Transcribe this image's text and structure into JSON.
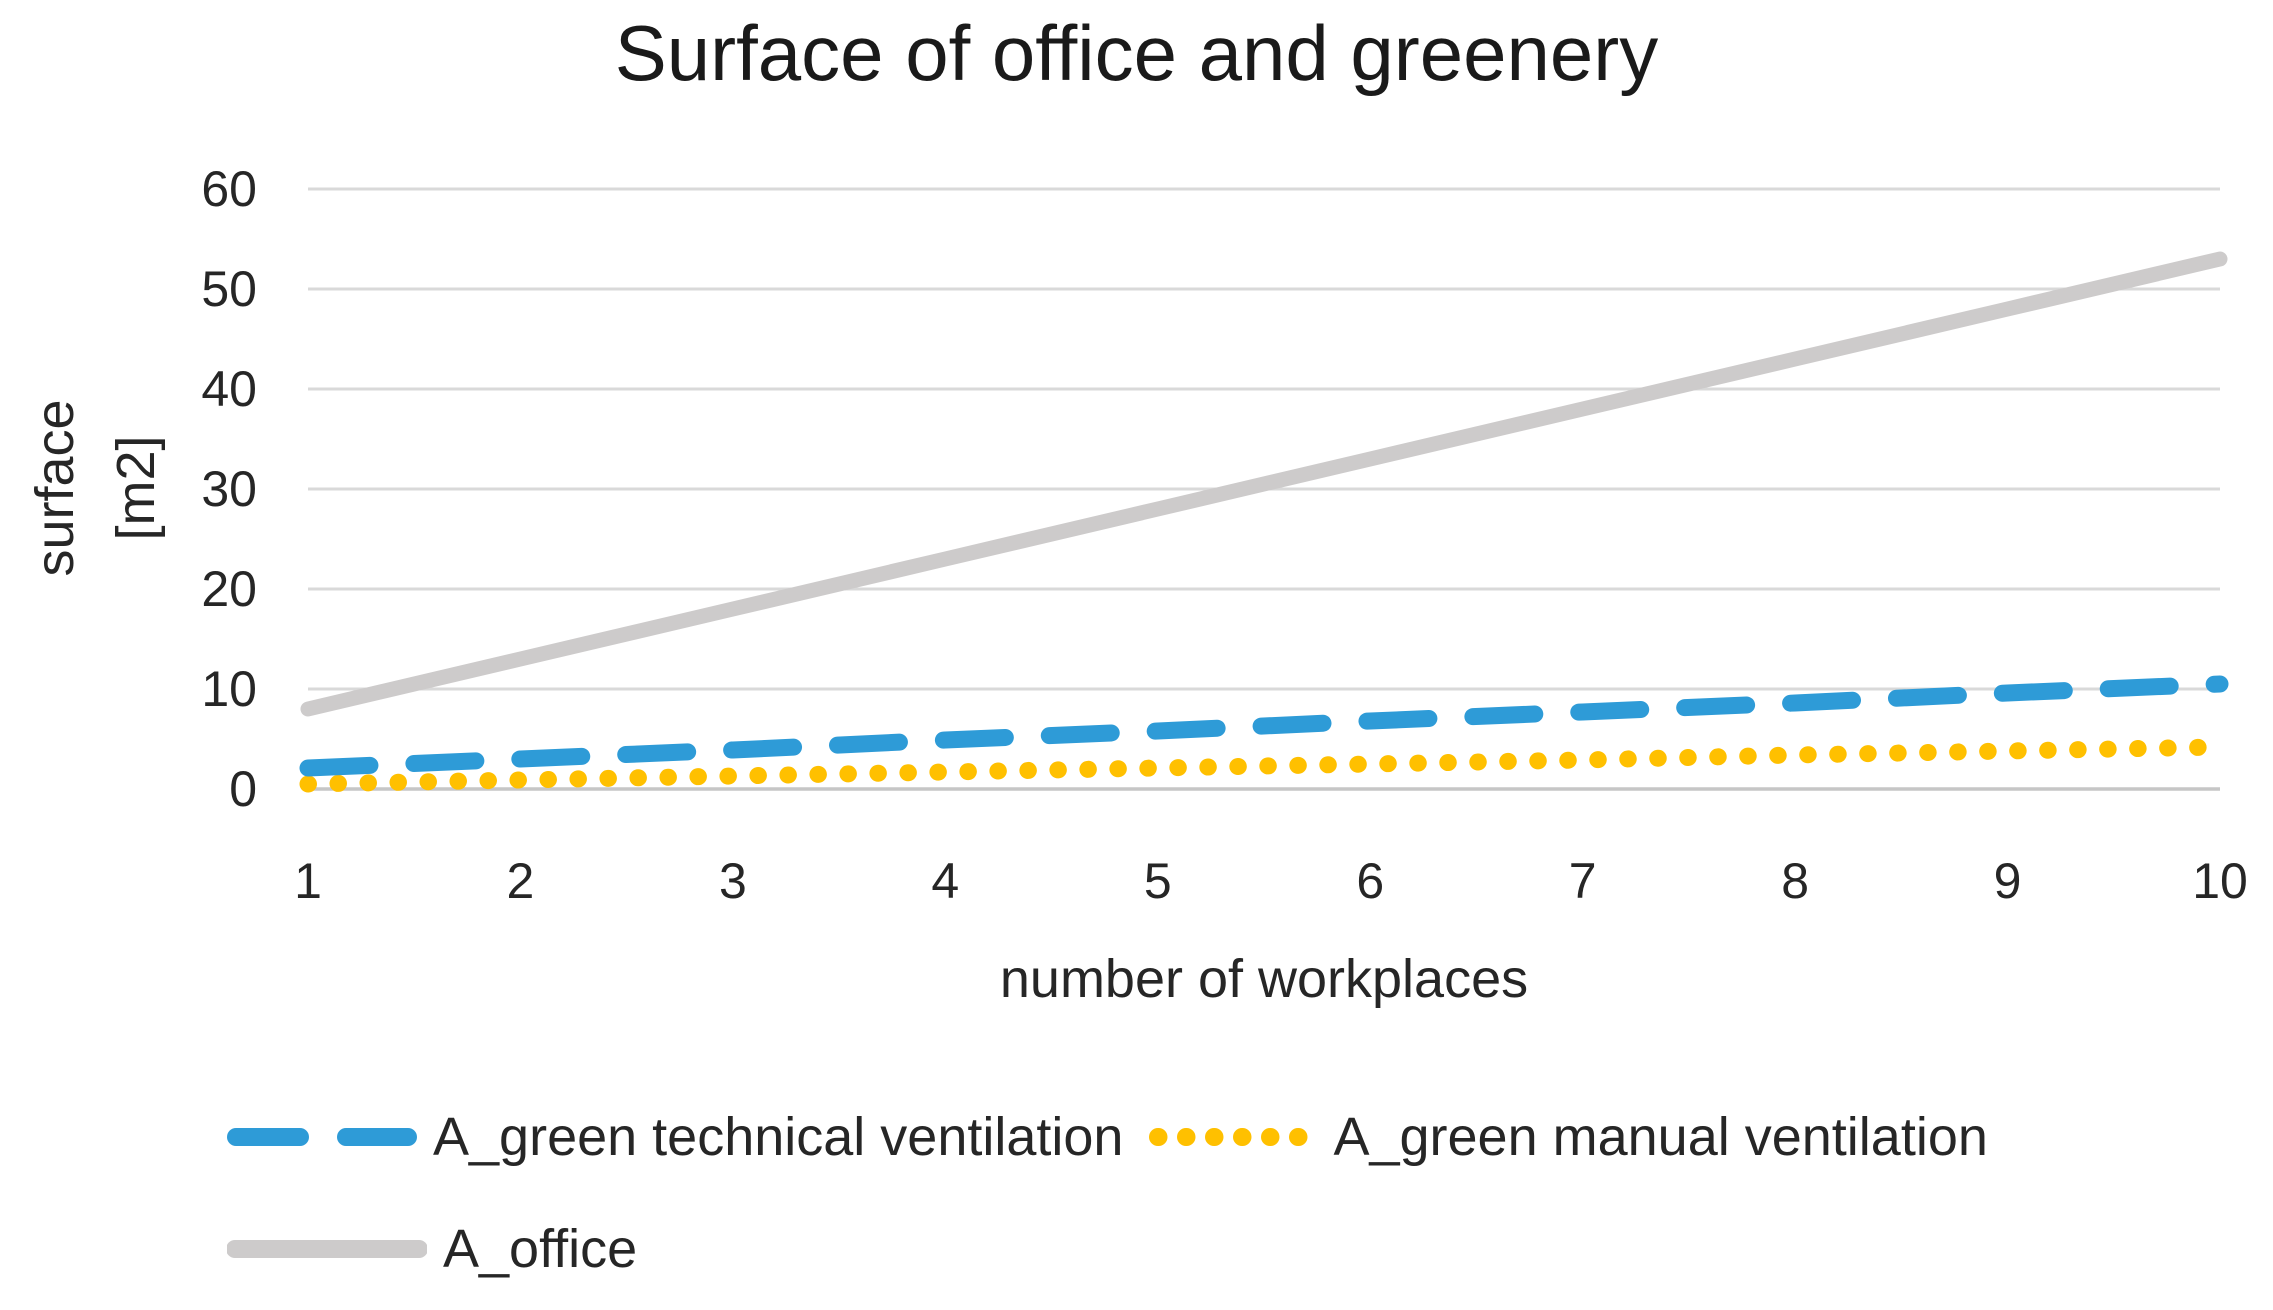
{
  "title": "Surface of office and greenery",
  "y_axis": {
    "title_lines": [
      "surface",
      "[m2]"
    ],
    "ticks": [
      0,
      10,
      20,
      30,
      40,
      50,
      60
    ],
    "min": 0,
    "max": 60
  },
  "x_axis": {
    "title": "number of workplaces",
    "ticks": [
      1,
      2,
      3,
      4,
      5,
      6,
      7,
      8,
      9,
      10
    ]
  },
  "legend": {
    "items": [
      {
        "label": "A_green technical ventilation",
        "series": "A_green technical ventilation"
      },
      {
        "label": "A_green manual ventilation",
        "series": "A_green manual ventilation"
      },
      {
        "label": "A_office",
        "series": "A_office"
      }
    ]
  },
  "colors": {
    "technical_blue": "#2E9BD7",
    "manual_yellow": "#FFC000",
    "office_gray": "#CDCBCB",
    "gridline": "#D9D9D9",
    "baseline": "#C6C6C6",
    "text": "#262626",
    "title_text": "#1A1A1A"
  },
  "chart_data": {
    "type": "line",
    "title": "Surface of office and greenery",
    "xlabel": "number of workplaces",
    "ylabel": "surface [m2]",
    "x": [
      1,
      2,
      3,
      4,
      5,
      6,
      7,
      8,
      9,
      10
    ],
    "series": [
      {
        "name": "A_office",
        "color": "#CDCBCB",
        "style": "solid",
        "values": [
          8,
          13,
          18,
          23,
          28,
          33,
          38,
          43,
          48,
          53
        ]
      },
      {
        "name": "A_green manual ventilation",
        "color": "#FFC000",
        "style": "dotted",
        "values": [
          0.5,
          0.9,
          1.3,
          1.7,
          2.1,
          2.5,
          2.9,
          3.4,
          3.8,
          4.2
        ]
      },
      {
        "name": "A_green technical ventilation",
        "color": "#2E9BD7",
        "style": "dashed",
        "values": [
          2.1,
          3.0,
          3.9,
          4.9,
          5.8,
          6.8,
          7.7,
          8.6,
          9.6,
          10.5
        ]
      }
    ],
    "xlim": [
      1,
      10
    ],
    "ylim": [
      0,
      60
    ],
    "grid": true,
    "grid_axis": "y",
    "legend_position": "bottom-left"
  }
}
